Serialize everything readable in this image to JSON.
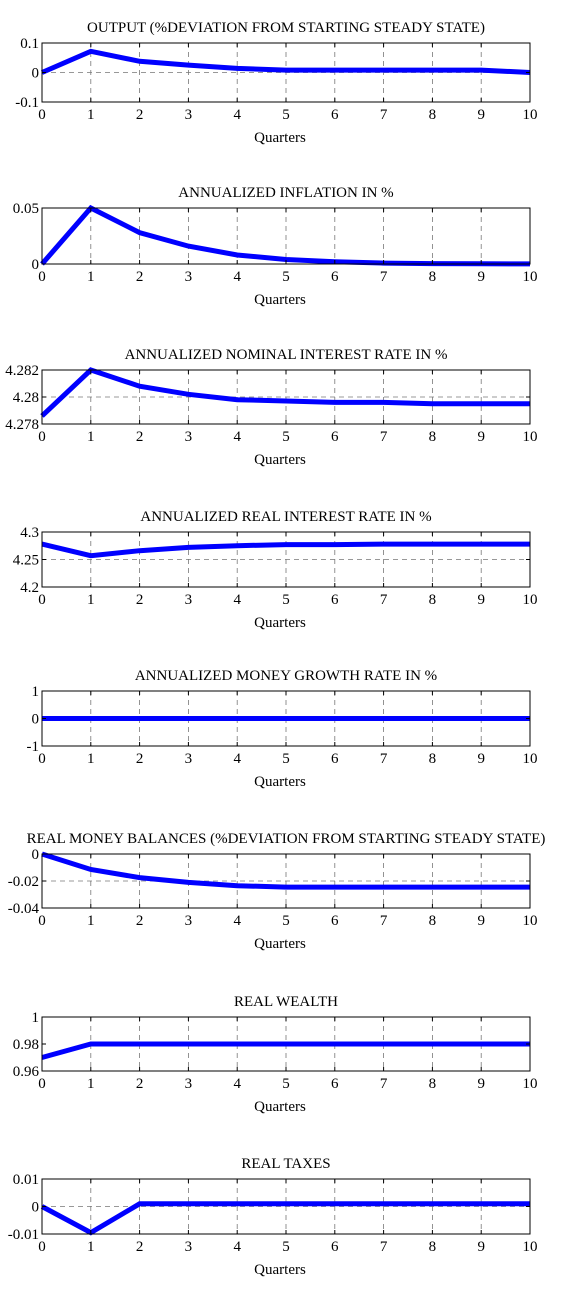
{
  "figure": {
    "line_color": "#0000ff",
    "frame_color": "#000000",
    "grid_color": "#777777"
  },
  "chart_data": [
    {
      "type": "line",
      "title": "OUTPUT (%DEVIATION FROM STARTING STEADY STATE)",
      "xlabel": "Quarters",
      "x": [
        0,
        1,
        2,
        3,
        4,
        5,
        6,
        7,
        8,
        9,
        10
      ],
      "values": [
        0,
        0.072,
        0.038,
        0.025,
        0.014,
        0.008,
        0.008,
        0.008,
        0.008,
        0.008,
        0.0
      ],
      "ylim": [
        -0.1,
        0.1
      ],
      "yticks": [
        -0.1,
        0,
        0.1
      ],
      "ytick_labels": [
        "-0.1",
        "0",
        "0.1"
      ],
      "xticks": [
        0,
        1,
        2,
        3,
        4,
        5,
        6,
        7,
        8,
        9,
        10
      ],
      "xtick_labels": [
        "0",
        "1",
        "2",
        "3",
        "4",
        "5",
        "6",
        "7",
        "8",
        "9",
        "10"
      ],
      "hline": 0,
      "grid": "dashed"
    },
    {
      "type": "line",
      "title": "ANNUALIZED INFLATION IN %",
      "xlabel": "Quarters",
      "x": [
        0,
        1,
        2,
        3,
        4,
        5,
        6,
        7,
        8,
        9,
        10
      ],
      "values": [
        0,
        0.05,
        0.028,
        0.016,
        0.008,
        0.004,
        0.002,
        0.0008,
        0.0004,
        0.0002,
        0.0001
      ],
      "ylim": [
        0,
        0.05
      ],
      "yticks": [
        0,
        0.05
      ],
      "ytick_labels": [
        "0",
        "0.05"
      ],
      "xticks": [
        0,
        1,
        2,
        3,
        4,
        5,
        6,
        7,
        8,
        9,
        10
      ],
      "xtick_labels": [
        "0",
        "1",
        "2",
        "3",
        "4",
        "5",
        "6",
        "7",
        "8",
        "9",
        "10"
      ],
      "hline": null,
      "grid": "dashed"
    },
    {
      "type": "line",
      "title": "ANNUALIZED NOMINAL INTEREST RATE IN %",
      "xlabel": "Quarters",
      "x": [
        0,
        1,
        2,
        3,
        4,
        5,
        6,
        7,
        8,
        9,
        10
      ],
      "values": [
        4.2786,
        4.282,
        4.2808,
        4.2802,
        4.2798,
        4.2797,
        4.2796,
        4.2796,
        4.2795,
        4.2795,
        4.2795
      ],
      "ylim": [
        4.278,
        4.282
      ],
      "yticks": [
        4.278,
        4.28,
        4.282
      ],
      "ytick_labels": [
        "4.278",
        "4.28",
        "4.282"
      ],
      "xticks": [
        0,
        1,
        2,
        3,
        4,
        5,
        6,
        7,
        8,
        9,
        10
      ],
      "xtick_labels": [
        "0",
        "1",
        "2",
        "3",
        "4",
        "5",
        "6",
        "7",
        "8",
        "9",
        "10"
      ],
      "hline": 4.28,
      "grid": "dashed"
    },
    {
      "type": "line",
      "title": "ANNUALIZED REAL INTEREST RATE IN %",
      "xlabel": "Quarters",
      "x": [
        0,
        1,
        2,
        3,
        4,
        5,
        6,
        7,
        8,
        9,
        10
      ],
      "values": [
        4.278,
        4.257,
        4.266,
        4.272,
        4.275,
        4.277,
        4.277,
        4.278,
        4.278,
        4.278,
        4.278
      ],
      "ylim": [
        4.2,
        4.3
      ],
      "yticks": [
        4.2,
        4.25,
        4.3
      ],
      "ytick_labels": [
        "4.2",
        "4.25",
        "4.3"
      ],
      "xticks": [
        0,
        1,
        2,
        3,
        4,
        5,
        6,
        7,
        8,
        9,
        10
      ],
      "xtick_labels": [
        "0",
        "1",
        "2",
        "3",
        "4",
        "5",
        "6",
        "7",
        "8",
        "9",
        "10"
      ],
      "hline": 4.25,
      "grid": "dashed"
    },
    {
      "type": "line",
      "title": "ANNUALIZED MONEY GROWTH RATE IN %",
      "xlabel": "Quarters",
      "x": [
        0,
        1,
        2,
        3,
        4,
        5,
        6,
        7,
        8,
        9,
        10
      ],
      "values": [
        0,
        0,
        0,
        0,
        0,
        0,
        0,
        0,
        0,
        0,
        0
      ],
      "ylim": [
        -1,
        1
      ],
      "yticks": [
        -1,
        0,
        1
      ],
      "ytick_labels": [
        "-1",
        "0",
        "1"
      ],
      "xticks": [
        0,
        1,
        2,
        3,
        4,
        5,
        6,
        7,
        8,
        9,
        10
      ],
      "xtick_labels": [
        "0",
        "1",
        "2",
        "3",
        "4",
        "5",
        "6",
        "7",
        "8",
        "9",
        "10"
      ],
      "hline": 0,
      "grid": "dashed"
    },
    {
      "type": "line",
      "title": "REAL MONEY BALANCES (%DEVIATION FROM STARTING STEADY STATE)",
      "xlabel": "Quarters",
      "x": [
        0,
        1,
        2,
        3,
        4,
        5,
        6,
        7,
        8,
        9,
        10
      ],
      "values": [
        0,
        -0.0115,
        -0.0175,
        -0.021,
        -0.0235,
        -0.0245,
        -0.0245,
        -0.0245,
        -0.0245,
        -0.0245,
        -0.0245
      ],
      "ylim": [
        -0.04,
        0
      ],
      "yticks": [
        -0.04,
        -0.02,
        0
      ],
      "ytick_labels": [
        "-0.04",
        "-0.02",
        "0"
      ],
      "xticks": [
        0,
        1,
        2,
        3,
        4,
        5,
        6,
        7,
        8,
        9,
        10
      ],
      "xtick_labels": [
        "0",
        "1",
        "2",
        "3",
        "4",
        "5",
        "6",
        "7",
        "8",
        "9",
        "10"
      ],
      "hline": -0.02,
      "grid": "dashed"
    },
    {
      "type": "line",
      "title": "REAL WEALTH",
      "xlabel": "Quarters",
      "x": [
        0,
        1,
        2,
        3,
        4,
        5,
        6,
        7,
        8,
        9,
        10
      ],
      "values": [
        0.97,
        0.98,
        0.98,
        0.98,
        0.98,
        0.98,
        0.98,
        0.98,
        0.98,
        0.98,
        0.98
      ],
      "ylim": [
        0.96,
        1.0
      ],
      "yticks": [
        0.96,
        0.98,
        1.0
      ],
      "ytick_labels": [
        "0.96",
        "0.98",
        "1"
      ],
      "xticks": [
        0,
        1,
        2,
        3,
        4,
        5,
        6,
        7,
        8,
        9,
        10
      ],
      "xtick_labels": [
        "0",
        "1",
        "2",
        "3",
        "4",
        "5",
        "6",
        "7",
        "8",
        "9",
        "10"
      ],
      "hline": null,
      "grid": "dashed"
    },
    {
      "type": "line",
      "title": "REAL TAXES",
      "xlabel": "Quarters",
      "x": [
        0,
        1,
        2,
        3,
        4,
        5,
        6,
        7,
        8,
        9,
        10
      ],
      "values": [
        0,
        -0.0095,
        0.001,
        0.001,
        0.001,
        0.001,
        0.001,
        0.001,
        0.001,
        0.001,
        0.001
      ],
      "ylim": [
        -0.01,
        0.01
      ],
      "yticks": [
        -0.01,
        0,
        0.01
      ],
      "ytick_labels": [
        "-0.01",
        "0",
        "0.01"
      ],
      "xticks": [
        0,
        1,
        2,
        3,
        4,
        5,
        6,
        7,
        8,
        9,
        10
      ],
      "xtick_labels": [
        "0",
        "1",
        "2",
        "3",
        "4",
        "5",
        "6",
        "7",
        "8",
        "9",
        "10"
      ],
      "hline": 0,
      "grid": "dashed"
    }
  ]
}
